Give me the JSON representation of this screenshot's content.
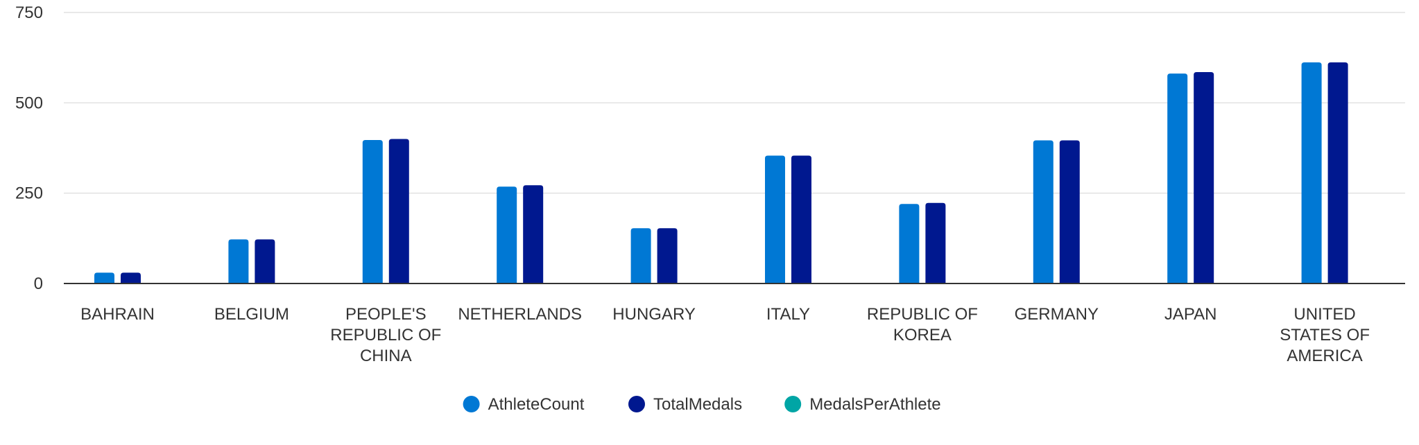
{
  "chart_data": {
    "type": "bar",
    "categories": [
      "BAHRAIN",
      "BELGIUM",
      "PEOPLE'S REPUBLIC OF CHINA",
      "NETHERLANDS",
      "HUNGARY",
      "ITALY",
      "REPUBLIC OF KOREA",
      "GERMANY",
      "JAPAN",
      "UNITED STATES OF AMERICA"
    ],
    "category_lines": [
      [
        "BAHRAIN"
      ],
      [
        "BELGIUM"
      ],
      [
        "PEOPLE'S",
        "REPUBLIC OF",
        "CHINA"
      ],
      [
        "NETHERLANDS"
      ],
      [
        "HUNGARY"
      ],
      [
        "ITALY"
      ],
      [
        "REPUBLIC OF",
        "KOREA"
      ],
      [
        "GERMANY"
      ],
      [
        "JAPAN"
      ],
      [
        "UNITED",
        "STATES OF",
        "AMERICA"
      ]
    ],
    "series": [
      {
        "name": "AthleteCount",
        "color": "#0078D4",
        "values": [
          30,
          122,
          397,
          268,
          153,
          354,
          220,
          396,
          581,
          612
        ]
      },
      {
        "name": "TotalMedals",
        "color": "#00188F",
        "values": [
          30,
          122,
          400,
          272,
          153,
          354,
          223,
          396,
          585,
          612
        ]
      },
      {
        "name": "MedalsPerAthlete",
        "color": "#00A5A5",
        "values": [
          1.0,
          1.0,
          1.01,
          1.01,
          1.0,
          1.0,
          1.01,
          1.0,
          1.01,
          1.0
        ]
      }
    ],
    "yticks": [
      "0",
      "250",
      "500",
      "750"
    ],
    "ylim": [
      0,
      750
    ],
    "grid": true,
    "legend_position": "bottom-center",
    "title": "",
    "xlabel": "",
    "ylabel": ""
  }
}
